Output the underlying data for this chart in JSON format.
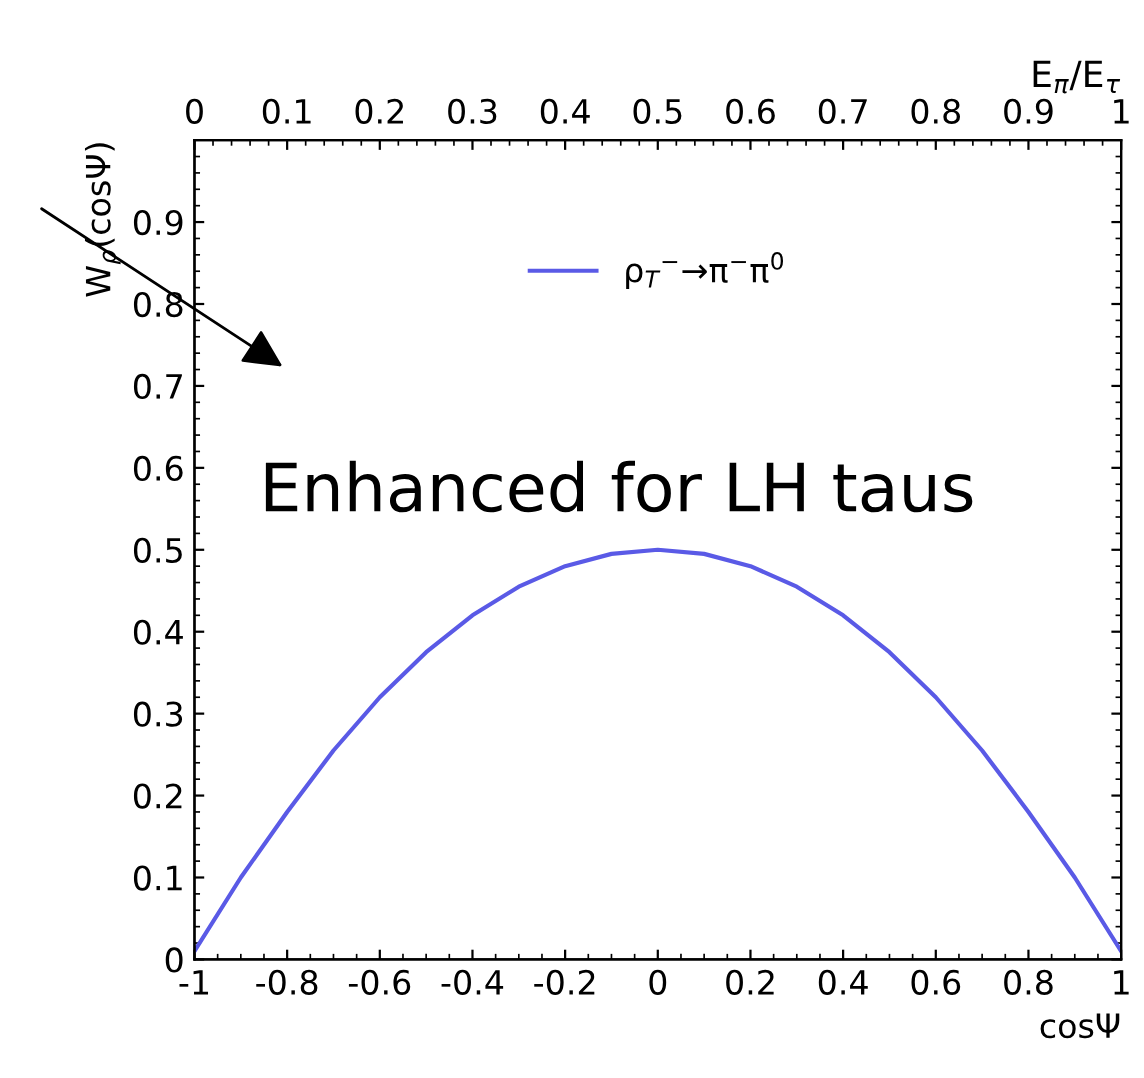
{
  "chart_data": {
    "type": "line",
    "xlabel": "cosΨ",
    "ylabel": "W$_{ρ}$(cosΨ)",
    "x2label": "E$_{π}$/E$_{τ}$",
    "x": [
      -1,
      -0.9,
      -0.8,
      -0.7,
      -0.6,
      -0.5,
      -0.4,
      -0.3,
      -0.2,
      -0.1,
      0,
      0.1,
      0.2,
      0.3,
      0.4,
      0.5,
      0.6,
      0.7,
      0.8,
      0.9,
      1
    ],
    "series": [
      {
        "name": "ρ$_{T}$$^{−}$→π$^{−}$π$^{0}$",
        "color": "#5a5ae6",
        "values": [
          0.01,
          0.1,
          0.18,
          0.255,
          0.32,
          0.375,
          0.42,
          0.455,
          0.48,
          0.495,
          0.5,
          0.495,
          0.48,
          0.455,
          0.42,
          0.375,
          0.32,
          0.255,
          0.18,
          0.1,
          0.01
        ]
      }
    ],
    "xlim": [
      -1,
      1
    ],
    "xticks": [
      -1,
      -0.8,
      -0.6,
      -0.4,
      -0.2,
      0,
      0.2,
      0.4,
      0.6,
      0.8,
      1
    ],
    "x2lim": [
      0,
      1
    ],
    "x2ticks": [
      0,
      0.1,
      0.2,
      0.3,
      0.4,
      0.5,
      0.6,
      0.7,
      0.8,
      0.9,
      1
    ],
    "ylim": [
      0,
      1
    ],
    "yticks": [
      0,
      0.1,
      0.2,
      0.3,
      0.4,
      0.5,
      0.6,
      0.7,
      0.8,
      0.9
    ],
    "legend": "top",
    "grid": false,
    "annotations": [
      "Enhanced for LH taus"
    ]
  }
}
